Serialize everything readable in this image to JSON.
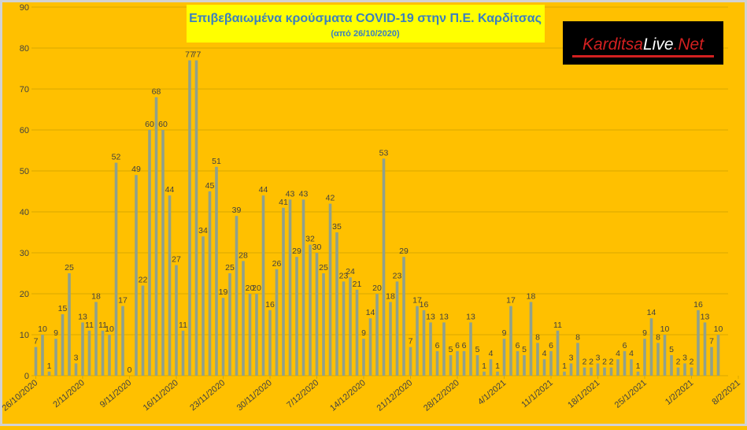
{
  "colors": {
    "background": "#ffc000",
    "frame": "#d2d2d2",
    "bar": "#8fa18c",
    "grid": "#d8a800",
    "title_box": "#ffff00",
    "title_text": "#3a7fc0",
    "text": "#404040",
    "logo_bg": "#000000",
    "logo_red": "#d22020",
    "logo_white": "#ffffff"
  },
  "logo": {
    "part1": "Karditsa",
    "part2": "Live",
    "part3": ".Net"
  },
  "chart_data": {
    "type": "bar",
    "title": "Επιβεβαιωμένα κρούσματα COVID-19 στην Π.Ε. Καρδίτσας",
    "subtitle": "(από 26/10/2020)",
    "xlabel": "",
    "ylabel": "",
    "ylim": [
      0,
      90
    ],
    "yticks": [
      0,
      10,
      20,
      30,
      40,
      50,
      60,
      70,
      80,
      90
    ],
    "grid": true,
    "legend": "none",
    "x_tick_labels": [
      "26/10/2020",
      "2/11/2020",
      "9/11/2020",
      "16/11/2020",
      "23/11/2020",
      "30/11/2020",
      "7/12/2020",
      "14/12/2020",
      "21/12/2020",
      "28/12/2020",
      "4/1/2021",
      "11/1/2021",
      "18/1/2021",
      "25/1/2021",
      "1/2/2021",
      "8/2/2021"
    ],
    "x_tick_every_days": 7,
    "values": [
      7,
      10,
      1,
      9,
      15,
      25,
      3,
      13,
      11,
      18,
      11,
      10,
      52,
      17,
      0,
      49,
      22,
      60,
      68,
      60,
      44,
      27,
      11,
      77,
      77,
      34,
      45,
      51,
      19,
      25,
      39,
      28,
      20,
      20,
      44,
      16,
      26,
      41,
      43,
      29,
      43,
      32,
      30,
      25,
      42,
      35,
      23,
      24,
      21,
      9,
      14,
      20,
      53,
      18,
      23,
      29,
      7,
      17,
      16,
      13,
      6,
      13,
      5,
      6,
      6,
      13,
      5,
      1,
      4,
      1,
      9,
      17,
      6,
      5,
      18,
      8,
      4,
      6,
      11,
      1,
      3,
      8,
      2,
      2,
      3,
      2,
      2,
      4,
      6,
      4,
      1,
      9,
      14,
      8,
      10,
      5,
      2,
      3,
      2,
      16,
      13,
      7,
      10
    ]
  }
}
